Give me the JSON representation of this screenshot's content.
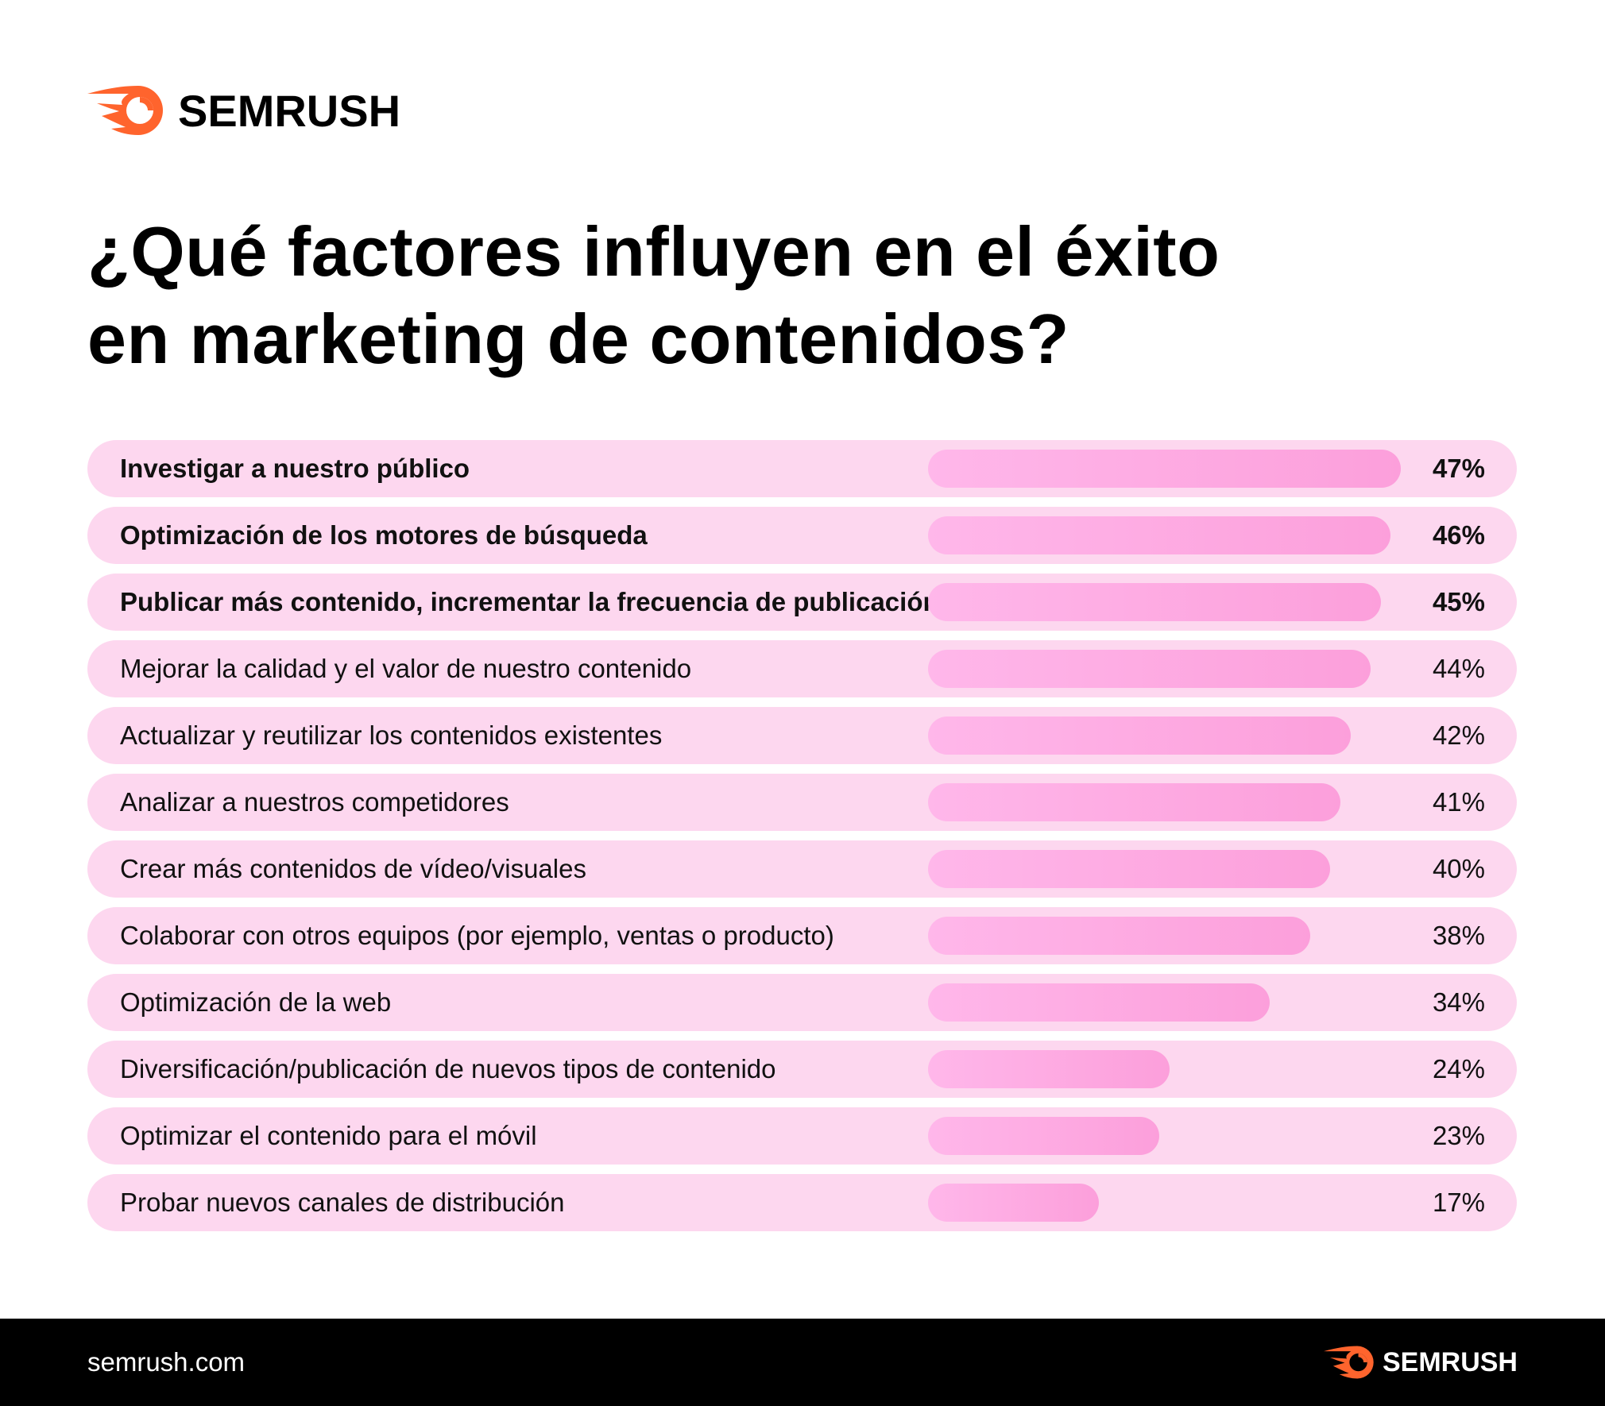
{
  "brand": {
    "name": "SEMRUSH",
    "accent": "#ff642d",
    "footer_site": "semrush.com"
  },
  "title": {
    "line1": "¿Qué factores influyen en el éxito",
    "line2": "en marketing de contenidos?"
  },
  "colors": {
    "row_bg": "#fdd7ef",
    "bar_start": "#ffb7ea",
    "bar_end": "#fc9fdb"
  },
  "chart_data": {
    "type": "bar",
    "orientation": "horizontal",
    "title": "¿Qué factores influyen en el éxito en marketing de contenidos?",
    "unit": "%",
    "xlim": [
      0,
      47
    ],
    "categories": [
      "Investigar a nuestro público",
      "Optimización de los motores de búsqueda",
      "Publicar más contenido, incrementar la frecuencia de publicación",
      "Mejorar la calidad y el valor de nuestro contenido",
      "Actualizar y reutilizar los contenidos existentes",
      "Analizar a nuestros competidores",
      "Crear más contenidos de vídeo/visuales",
      "Colaborar con otros equipos (por ejemplo, ventas o producto)",
      "Optimización de la web",
      "Diversificación/publicación de nuevos tipos de contenido",
      "Optimizar el contenido para el móvil",
      "Probar nuevos canales de distribución"
    ],
    "values": [
      47,
      46,
      45,
      44,
      42,
      41,
      40,
      38,
      34,
      24,
      23,
      17
    ],
    "labels": [
      "47%",
      "46%",
      "45%",
      "44%",
      "42%",
      "41%",
      "40%",
      "38%",
      "34%",
      "24%",
      "23%",
      "17%"
    ],
    "highlighted_top": 3
  }
}
